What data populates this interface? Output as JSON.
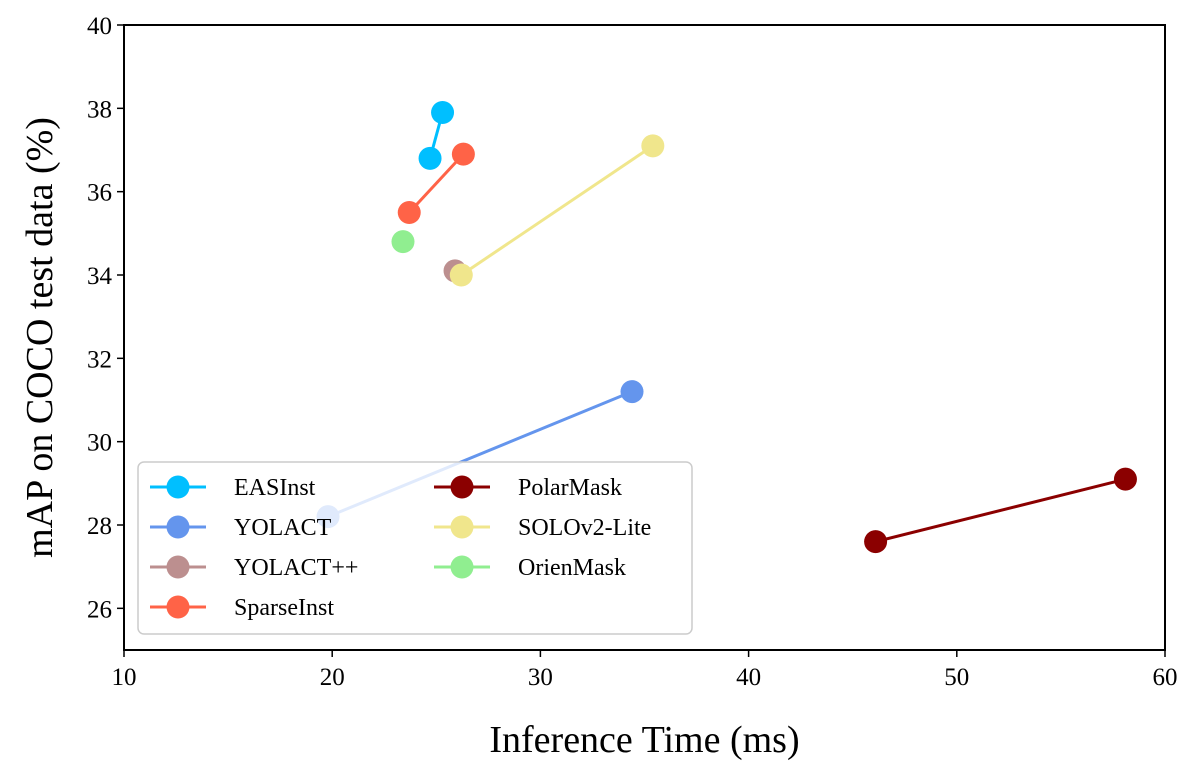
{
  "chart_data": {
    "type": "line",
    "title": "",
    "xlabel": "Inference Time (ms)",
    "ylabel": "mAP on COCO test data (%)",
    "xlim": [
      10,
      60
    ],
    "ylim": [
      25,
      40
    ],
    "xticks": [
      10,
      20,
      30,
      40,
      50,
      60
    ],
    "yticks": [
      26,
      28,
      30,
      32,
      34,
      36,
      38,
      40
    ],
    "grid": false,
    "legend_position": "bottom-left",
    "series": [
      {
        "name": "EASInst",
        "color": "#00bfff",
        "points": [
          [
            24.7,
            36.8
          ],
          [
            25.3,
            37.9
          ]
        ]
      },
      {
        "name": "YOLACT",
        "color": "#6495ed",
        "points": [
          [
            19.8,
            28.2
          ],
          [
            34.4,
            31.2
          ]
        ]
      },
      {
        "name": "YOLACT++",
        "color": "#bc8f8f",
        "points": [
          [
            25.9,
            34.1
          ]
        ]
      },
      {
        "name": "SparseInst",
        "color": "#ff6347",
        "points": [
          [
            23.7,
            35.5
          ],
          [
            26.3,
            36.9
          ]
        ]
      },
      {
        "name": "PolarMask",
        "color": "#8b0000",
        "points": [
          [
            46.1,
            27.6
          ],
          [
            58.1,
            29.1
          ]
        ]
      },
      {
        "name": "SOLOv2-Lite",
        "color": "#f0e68c",
        "points": [
          [
            26.2,
            34.0
          ],
          [
            35.4,
            37.1
          ]
        ]
      },
      {
        "name": "OrienMask",
        "color": "#90ee90",
        "points": [
          [
            23.4,
            34.8
          ]
        ]
      }
    ]
  }
}
